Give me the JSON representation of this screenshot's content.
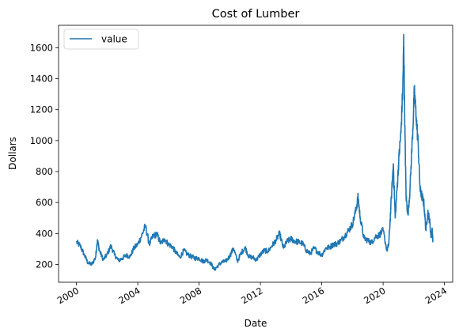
{
  "chart_data": {
    "type": "line",
    "title": "Cost of Lumber",
    "xlabel": "Date",
    "ylabel": "Dollars",
    "xlim": [
      "1998-11-01",
      "2024-07-15"
    ],
    "ylim": [
      85,
      1745
    ],
    "x_ticks": [
      "2000",
      "2004",
      "2008",
      "2012",
      "2016",
      "2020",
      "2024"
    ],
    "y_ticks": [
      200,
      400,
      600,
      800,
      1000,
      1200,
      1400,
      1600
    ],
    "grid": false,
    "legend": {
      "position": "top-left",
      "entries": [
        "value"
      ]
    },
    "series": [
      {
        "name": "value",
        "color": "#1f77b4",
        "x": [
          "2000-01-01",
          "2000-04-01",
          "2000-07-01",
          "2000-10-01",
          "2001-01-01",
          "2001-04-01",
          "2001-05-15",
          "2001-07-01",
          "2001-10-01",
          "2002-01-01",
          "2002-04-01",
          "2002-07-01",
          "2002-10-01",
          "2003-01-01",
          "2003-04-01",
          "2003-07-01",
          "2003-10-01",
          "2004-01-01",
          "2004-04-01",
          "2004-07-01",
          "2004-10-01",
          "2005-01-01",
          "2005-04-01",
          "2005-07-01",
          "2005-10-01",
          "2006-01-01",
          "2006-04-01",
          "2006-07-01",
          "2006-10-01",
          "2007-01-01",
          "2007-04-01",
          "2007-07-01",
          "2007-10-01",
          "2008-01-01",
          "2008-04-01",
          "2008-07-01",
          "2008-10-01",
          "2009-01-01",
          "2009-04-01",
          "2009-07-01",
          "2009-10-01",
          "2010-01-01",
          "2010-04-01",
          "2010-07-01",
          "2010-10-01",
          "2011-01-01",
          "2011-04-01",
          "2011-07-01",
          "2011-10-01",
          "2012-01-01",
          "2012-04-01",
          "2012-07-01",
          "2012-10-01",
          "2013-01-01",
          "2013-04-01",
          "2013-07-01",
          "2013-10-01",
          "2014-01-01",
          "2014-04-01",
          "2014-07-01",
          "2014-10-01",
          "2015-01-01",
          "2015-04-01",
          "2015-07-01",
          "2015-10-01",
          "2016-01-01",
          "2016-04-01",
          "2016-07-01",
          "2016-10-01",
          "2017-01-01",
          "2017-04-01",
          "2017-07-01",
          "2017-10-01",
          "2018-01-01",
          "2018-04-01",
          "2018-05-15",
          "2018-07-01",
          "2018-10-01",
          "2019-01-01",
          "2019-04-01",
          "2019-07-01",
          "2019-10-01",
          "2020-01-01",
          "2020-04-01",
          "2020-05-15",
          "2020-07-01",
          "2020-09-01",
          "2020-10-15",
          "2020-12-01",
          "2021-01-15",
          "2021-03-01",
          "2021-04-15",
          "2021-05-07",
          "2021-06-01",
          "2021-07-01",
          "2021-08-15",
          "2021-10-01",
          "2021-12-01",
          "2022-01-15",
          "2022-03-01",
          "2022-04-15",
          "2022-06-01",
          "2022-07-15",
          "2022-09-01",
          "2022-10-15",
          "2022-12-01",
          "2023-01-15",
          "2023-02-15",
          "2023-03-15",
          "2023-04-01"
        ],
        "values": [
          345,
          320,
          265,
          210,
          200,
          245,
          360,
          290,
          230,
          265,
          320,
          260,
          225,
          240,
          260,
          250,
          305,
          330,
          385,
          450,
          330,
          385,
          395,
          335,
          365,
          330,
          315,
          275,
          245,
          290,
          265,
          250,
          240,
          240,
          220,
          230,
          210,
          165,
          195,
          215,
          220,
          255,
          305,
          220,
          275,
          310,
          250,
          245,
          230,
          265,
          290,
          285,
          320,
          355,
          400,
          305,
          350,
          365,
          350,
          345,
          335,
          290,
          270,
          305,
          280,
          260,
          305,
          310,
          330,
          335,
          355,
          385,
          420,
          460,
          560,
          635,
          510,
          370,
          355,
          340,
          380,
          390,
          420,
          290,
          330,
          560,
          850,
          500,
          700,
          900,
          1050,
          1350,
          1670,
          1100,
          640,
          520,
          680,
          1030,
          1320,
          1150,
          980,
          680,
          640,
          590,
          420,
          540,
          480,
          380,
          420,
          350
        ]
      }
    ]
  }
}
